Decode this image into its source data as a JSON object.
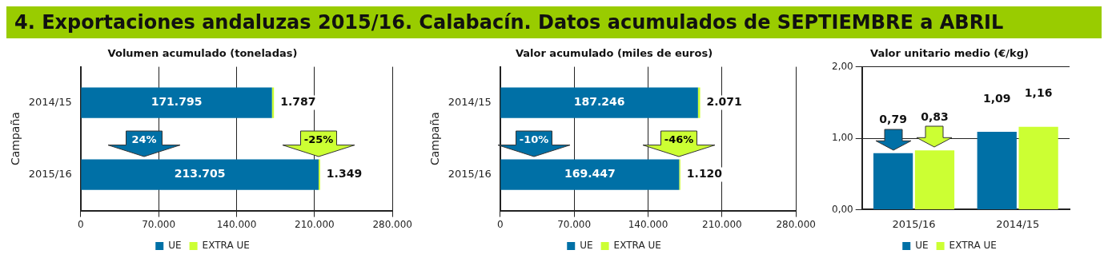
{
  "chart_data": [
    {
      "type": "bar",
      "orientation": "horizontal",
      "stacked": true,
      "title": "4. Exportaciones andaluzas 2015/16. Calabacín. Datos acumulados de SEPTIEMBRE a ABRIL",
      "subtitle": "Volumen acumulado (toneladas)",
      "ylabel": "Campaña",
      "categories": [
        "2014/15",
        "2015/16"
      ],
      "series": [
        {
          "name": "UE",
          "color": "#0070a6",
          "values": [
            171795,
            213705
          ],
          "value_labels": [
            "171.795",
            "213.705"
          ]
        },
        {
          "name": "EXTRA UE",
          "color": "#ccff33",
          "values": [
            1787,
            1349
          ],
          "value_labels": [
            "1.787",
            "1.349"
          ]
        }
      ],
      "xlim": [
        0,
        280000
      ],
      "xticks": [
        0,
        {
          "value": 70000,
          "label": "70.000"
        },
        {
          "value": 140000,
          "label": "140.000"
        },
        {
          "value": 210000,
          "label": "210.000"
        },
        {
          "value": 280000,
          "label": "280.000"
        }
      ],
      "grid": "x",
      "legend": "bottom",
      "annotations": [
        "24%",
        {
          "text": "-25%",
          "x": 213705,
          "y": "2015/16"
        }
      ]
    },
    {
      "type": "bar",
      "orientation": "horizontal",
      "stacked": true,
      "title": "Valor acumulado (miles de euros)",
      "ylabel": "Campaña",
      "categories": [
        "2014/15",
        "2015/16"
      ],
      "series": [
        {
          "name": "UE",
          "color": "#0070a6",
          "values": [
            187246,
            169447
          ],
          "value_labels": [
            "187.246",
            "169.447"
          ]
        },
        {
          "name": "EXTRA UE",
          "color": "#ccff33",
          "values": [
            2071,
            1120
          ],
          "value_labels": [
            "2.071",
            "1.120"
          ]
        }
      ],
      "xlim": [
        0,
        280000
      ],
      "xticks": [
        0,
        {
          "value": 70000,
          "label": "70.000"
        },
        {
          "value": 140000,
          "label": "140.000"
        },
        {
          "value": 210000,
          "label": "210.000"
        },
        {
          "value": 280000,
          "label": "280.000"
        }
      ],
      "grid": "x",
      "legend": "bottom",
      "annotations": [
        "-10%",
        {
          "text": "-46%",
          "x": 169447,
          "y": "2015/16"
        }
      ]
    },
    {
      "type": "bar",
      "title": "Valor unitario medio (€/kg)",
      "categories": [
        "2015/16",
        "2014/15"
      ],
      "series": [
        {
          "name": "UE",
          "color": "#0070a6",
          "values": [
            0.79,
            1.09
          ],
          "value_labels": [
            "0,79",
            "1,09"
          ]
        },
        {
          "name": "EXTRA UE",
          "color": "#ccff33",
          "values": [
            0.83,
            1.16
          ],
          "value_labels": [
            "0,83",
            "1,16"
          ]
        }
      ],
      "ylim": [
        0,
        2
      ],
      "yticks": [
        {
          "value": 0,
          "label": "0,00"
        },
        {
          "value": 1,
          "label": "1,00"
        },
        {
          "value": 2,
          "label": "2,00"
        }
      ],
      "grid": "y",
      "legend": "bottom"
    }
  ]
}
